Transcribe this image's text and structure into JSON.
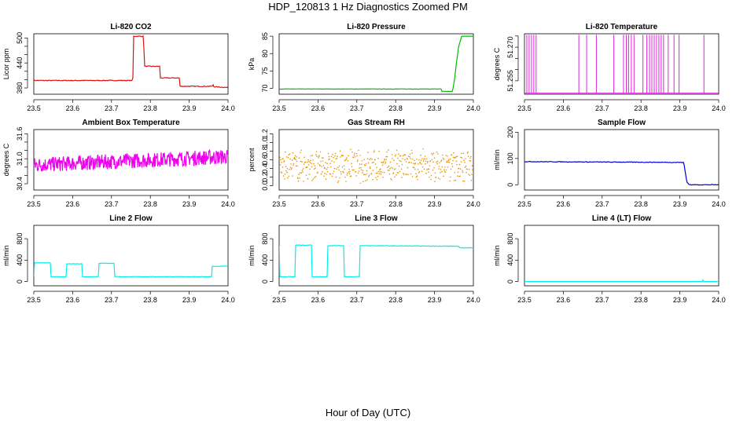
{
  "title": "HDP_120813  1 Hz Diagnostics Zoomed PM",
  "xaxis_title": "Hour of Day (UTC)",
  "chart_data": [
    {
      "type": "line",
      "title": "Li-820 CO2",
      "ylabel": "Licor ppm",
      "color": "#dd1111",
      "xlim": [
        23.5,
        24.0
      ],
      "ylim": [
        365,
        510
      ],
      "xticks": [
        "23.5",
        "23.6",
        "23.7",
        "23.8",
        "23.9",
        "24.0"
      ],
      "yticks": [
        {
          "v": 380,
          "label": "380"
        },
        {
          "v": 440,
          "label": "440"
        },
        {
          "v": 500,
          "label": "500"
        }
      ],
      "minor_yticks": [
        400,
        420,
        460,
        480
      ],
      "series": [
        {
          "x": [
            23.5,
            23.755,
            23.756,
            23.783,
            23.784,
            23.824,
            23.825,
            23.875,
            23.876,
            23.96,
            23.961,
            23.962,
            23.963,
            24.0
          ],
          "y": [
            398,
            398,
            504,
            504,
            432,
            432,
            404,
            404,
            384,
            384,
            390,
            386,
            383,
            381
          ]
        }
      ],
      "noise": 0.9
    },
    {
      "type": "line",
      "title": "Li-820 Pressure",
      "ylabel": "kPa",
      "color": "#00bb00",
      "xlim": [
        23.5,
        24.0
      ],
      "ylim": [
        68.3,
        85.7
      ],
      "xticks": [
        "23.5",
        "23.6",
        "23.7",
        "23.8",
        "23.9",
        "24.0"
      ],
      "yticks": [
        {
          "v": 70,
          "label": "70"
        },
        {
          "v": 75,
          "label": "75"
        },
        {
          "v": 80,
          "label": "80"
        },
        {
          "v": 85,
          "label": "85"
        }
      ],
      "series": [
        {
          "x": [
            23.5,
            23.918,
            23.919,
            23.946,
            23.951,
            23.956,
            23.962,
            23.97,
            24.0
          ],
          "y": [
            69.8,
            69.8,
            69.1,
            69.1,
            72,
            77,
            82,
            85,
            85
          ]
        }
      ],
      "noise": 0.05
    },
    {
      "type": "line",
      "title": "Li-820 Temperature",
      "ylabel": "degrees C",
      "color": "#dd22dd",
      "xlim": [
        23.5,
        24.0
      ],
      "ylim": [
        51.249,
        51.276
      ],
      "xticks": [
        "23.5",
        "23.6",
        "23.7",
        "23.8",
        "23.9",
        "24.0"
      ],
      "yticks": [
        {
          "v": 51.255,
          "label": "51.255"
        },
        {
          "v": 51.27,
          "label": "51.270"
        }
      ],
      "minor_yticks": [
        51.26,
        51.265,
        51.275
      ],
      "spike_base": 51.2495,
      "spike_top": 51.2755,
      "spikes": [
        23.506,
        23.512,
        23.518,
        23.524,
        23.53,
        23.64,
        23.66,
        23.685,
        23.73,
        23.755,
        23.762,
        23.768,
        23.775,
        23.782,
        23.805,
        23.815,
        23.822,
        23.828,
        23.834,
        23.84,
        23.846,
        23.852,
        23.858,
        23.87,
        23.885,
        23.898,
        23.962
      ]
    },
    {
      "type": "line",
      "title": "Ambient Box Temperature",
      "ylabel": "degrees C",
      "color": "#ee00ee",
      "xlim": [
        23.5,
        24.0
      ],
      "ylim": [
        30.25,
        31.7
      ],
      "xticks": [
        "23.5",
        "23.6",
        "23.7",
        "23.8",
        "23.9",
        "24.0"
      ],
      "yticks": [
        {
          "v": 30.4,
          "label": "30.4"
        },
        {
          "v": 31.0,
          "label": "31.0"
        },
        {
          "v": 31.6,
          "label": "31.6"
        }
      ],
      "minor_yticks": [
        30.6,
        30.8,
        31.2,
        31.4
      ],
      "series": [
        {
          "x": [
            23.5,
            24.0
          ],
          "y": [
            30.85,
            31.05
          ]
        }
      ],
      "noise": 0.18
    },
    {
      "type": "scatter",
      "title": "Gas Stream RH",
      "ylabel": "percent",
      "color": "#e69500",
      "xlim": [
        23.5,
        24.0
      ],
      "ylim": [
        -0.1,
        1.3
      ],
      "xticks": [
        "23.5",
        "23.6",
        "23.7",
        "23.8",
        "23.9",
        "24.0"
      ],
      "yticks": [
        {
          "v": 0.0,
          "label": "0.0"
        },
        {
          "v": 0.2,
          "label": "0.2"
        },
        {
          "v": 0.4,
          "label": "0.4"
        },
        {
          "v": 0.6,
          "label": "0.6"
        },
        {
          "v": 0.8,
          "label": "0.8"
        },
        {
          "v": 1.0,
          "label": "1.0"
        },
        {
          "v": 1.2,
          "label": "1.2"
        }
      ],
      "series": [
        {
          "x": [
            23.5,
            24.0
          ],
          "y": [
            0.45,
            0.45
          ]
        }
      ],
      "noise": 0.32
    },
    {
      "type": "line",
      "title": "Sample Flow",
      "ylabel": "ml/min",
      "color": "#0000cc",
      "xlim": [
        23.5,
        24.0
      ],
      "ylim": [
        -20,
        210
      ],
      "xticks": [
        "23.5",
        "23.6",
        "23.7",
        "23.8",
        "23.9",
        "24.0"
      ],
      "yticks": [
        {
          "v": 0,
          "label": "0"
        },
        {
          "v": 100,
          "label": "100"
        },
        {
          "v": 200,
          "label": "200"
        }
      ],
      "series": [
        {
          "x": [
            23.5,
            23.91,
            23.918,
            23.925,
            24.0
          ],
          "y": [
            88,
            85,
            10,
            0,
            0
          ]
        }
      ],
      "noise": 1.2
    },
    {
      "type": "line",
      "title": "Line 2 Flow",
      "ylabel": "ml/min",
      "color": "#00eeee",
      "xlim": [
        23.5,
        24.0
      ],
      "ylim": [
        -80,
        1050
      ],
      "xticks": [
        "23.5",
        "23.6",
        "23.7",
        "23.8",
        "23.9",
        "24.0"
      ],
      "yticks": [
        {
          "v": 0,
          "label": "0"
        },
        {
          "v": 400,
          "label": "400"
        },
        {
          "v": 800,
          "label": "800"
        }
      ],
      "series": [
        {
          "x": [
            23.5,
            23.501,
            23.543,
            23.544,
            23.583,
            23.584,
            23.624,
            23.625,
            23.666,
            23.667,
            23.707,
            23.708,
            23.958,
            23.959,
            24.0
          ],
          "y": [
            90,
            350,
            350,
            90,
            90,
            330,
            330,
            90,
            90,
            340,
            340,
            90,
            90,
            280,
            290
          ]
        }
      ],
      "noise": 4
    },
    {
      "type": "line",
      "title": "Line 3 Flow",
      "ylabel": "ml/min",
      "color": "#00eeee",
      "xlim": [
        23.5,
        24.0
      ],
      "ylim": [
        -80,
        1050
      ],
      "xticks": [
        "23.5",
        "23.6",
        "23.7",
        "23.8",
        "23.9",
        "24.0"
      ],
      "yticks": [
        {
          "v": 0,
          "label": "0"
        },
        {
          "v": 400,
          "label": "400"
        },
        {
          "v": 800,
          "label": "800"
        }
      ],
      "series": [
        {
          "x": [
            23.5,
            23.501,
            23.502,
            23.541,
            23.542,
            23.583,
            23.584,
            23.624,
            23.625,
            23.666,
            23.667,
            23.707,
            23.708,
            23.96,
            23.965,
            24.0
          ],
          "y": [
            660,
            90,
            90,
            90,
            680,
            680,
            90,
            90,
            670,
            670,
            90,
            90,
            670,
            660,
            630,
            630
          ]
        }
      ],
      "noise": 5
    },
    {
      "type": "line",
      "title": "Line 4 (LT) Flow",
      "ylabel": "ml/min",
      "color": "#00eeee",
      "xlim": [
        23.5,
        24.0
      ],
      "ylim": [
        -80,
        1050
      ],
      "xticks": [
        "23.5",
        "23.6",
        "23.7",
        "23.8",
        "23.9",
        "24.0"
      ],
      "yticks": [
        {
          "v": 0,
          "label": "0"
        },
        {
          "v": 400,
          "label": "400"
        },
        {
          "v": 800,
          "label": "800"
        }
      ],
      "series": [
        {
          "x": [
            23.5,
            23.958,
            23.959,
            23.96,
            23.961,
            24.0
          ],
          "y": [
            0,
            0,
            60,
            0,
            0,
            0
          ]
        }
      ],
      "noise": 0
    }
  ]
}
